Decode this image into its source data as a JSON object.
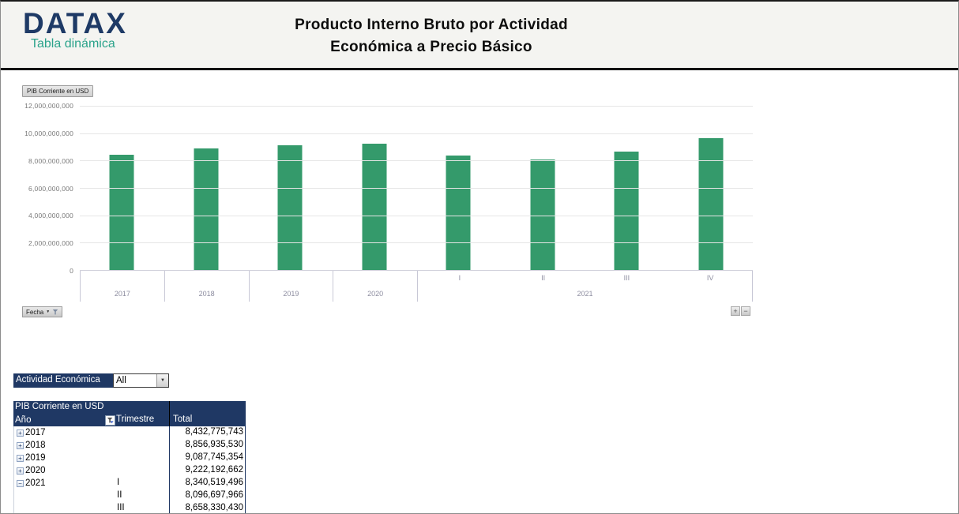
{
  "header": {
    "logo": {
      "title": "DATAX",
      "subtitle": "Tabla dinámica"
    },
    "title_line1": "Producto Interno Bruto por Actividad",
    "title_line2": "Económica a Precio Básico"
  },
  "icons": {
    "dropdown_arrow": "▼",
    "plus": "+",
    "minus": "−"
  },
  "chart": {
    "field_button": "PIB Corriente en USD",
    "axis_field_button": "Fecha",
    "expand_button_label": "+",
    "collapse_button_label": "−",
    "y_ticks": [
      "12,000,000,000",
      "10,000,000,000",
      "8,000,000,000",
      "6,000,000,000",
      "4,000,000,000",
      "2,000,000,000",
      "0"
    ]
  },
  "chart_data": {
    "type": "bar",
    "title": "PIB Corriente en USD",
    "xlabel": "Fecha",
    "ylabel": "",
    "categories": [
      "2017",
      "2018",
      "2019",
      "2020",
      "2021-I",
      "2021-II",
      "2021-III",
      "2021-IV"
    ],
    "values": [
      8432775743,
      8856935530,
      9087745354,
      9222192662,
      8340519496,
      8096697966,
      8658330430,
      9660000000
    ],
    "ylim": [
      0,
      12000000000
    ],
    "ytick_interval": 2000000000,
    "grid": true,
    "legend": false,
    "bar_color": "#349a6b",
    "axis_groups": [
      {
        "label": "2017",
        "span": 1,
        "quarters": []
      },
      {
        "label": "2018",
        "span": 1,
        "quarters": []
      },
      {
        "label": "2019",
        "span": 1,
        "quarters": []
      },
      {
        "label": "2020",
        "span": 1,
        "quarters": []
      },
      {
        "label": "2021",
        "span": 4,
        "quarters": [
          "I",
          "II",
          "III",
          "IV"
        ]
      }
    ]
  },
  "filter": {
    "label": "Actividad Económica",
    "value": "All"
  },
  "pivot_table": {
    "title": "PIB Corriente en USD",
    "columns": [
      "Año",
      "Trimestre",
      "Total"
    ],
    "rows": [
      {
        "expand": "+",
        "year": "2017",
        "trimestre": "",
        "total": "8,432,775,743"
      },
      {
        "expand": "+",
        "year": "2018",
        "trimestre": "",
        "total": "8,856,935,530"
      },
      {
        "expand": "+",
        "year": "2019",
        "trimestre": "",
        "total": "9,087,745,354"
      },
      {
        "expand": "+",
        "year": "2020",
        "trimestre": "",
        "total": "9,222,192,662"
      },
      {
        "expand": "−",
        "year": "2021",
        "trimestre": "I",
        "total": "8,340,519,496"
      },
      {
        "expand": "",
        "year": "",
        "trimestre": "II",
        "total": "8,096,697,966"
      },
      {
        "expand": "",
        "year": "",
        "trimestre": "III",
        "total": "8,658,330,430"
      }
    ]
  },
  "colors": {
    "navy": "#1f3864",
    "teal": "#2ba38b",
    "bar_green": "#349a6b"
  }
}
